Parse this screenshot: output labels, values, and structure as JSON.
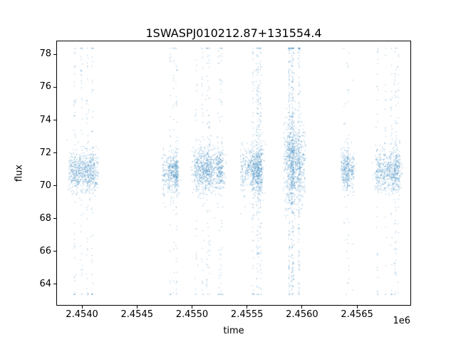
{
  "chart_data": {
    "type": "scatter",
    "title": "1SWASPJ010212.87+131554.4",
    "xlabel": "time",
    "ylabel": "flux",
    "x_offset_label": "1e6",
    "xlim": [
      2453773,
      2456985
    ],
    "ylim": [
      62.73,
      78.8
    ],
    "xticks": [
      2454000,
      2454500,
      2455000,
      2455500,
      2456000,
      2456500
    ],
    "xtick_labels": [
      "2.4540",
      "2.4545",
      "2.4550",
      "2.4555",
      "2.4560",
      "2.4565"
    ],
    "yticks": [
      64,
      66,
      68,
      70,
      72,
      74,
      76,
      78
    ],
    "grid": false,
    "legend": "none",
    "marker_color": "#1f77b4",
    "marker_alpha": 0.55,
    "marker_size_px": 1,
    "flux_min": 63.4,
    "flux_max": 78.4,
    "clusters": [
      {
        "x_center": 2454010,
        "x_width": 270,
        "n_points": 900,
        "core_mean": 70.9,
        "core_sigma": 0.6,
        "outlier_fraction": 0.18
      },
      {
        "x_center": 2454797,
        "x_width": 140,
        "n_points": 550,
        "core_mean": 70.8,
        "core_sigma": 0.65,
        "outlier_fraction": 0.15
      },
      {
        "x_center": 2455146,
        "x_width": 260,
        "n_points": 1100,
        "core_mean": 71.0,
        "core_sigma": 0.7,
        "outlier_fraction": 0.18
      },
      {
        "x_center": 2455535,
        "x_width": 200,
        "n_points": 1000,
        "core_mean": 71.0,
        "core_sigma": 0.75,
        "outlier_fraction": 0.2
      },
      {
        "x_center": 2455930,
        "x_width": 200,
        "n_points": 1400,
        "core_mean": 71.3,
        "core_sigma": 1.3,
        "outlier_fraction": 0.3
      },
      {
        "x_center": 2456409,
        "x_width": 120,
        "n_points": 420,
        "core_mean": 71.0,
        "core_sigma": 0.6,
        "outlier_fraction": 0.12
      },
      {
        "x_center": 2456779,
        "x_width": 210,
        "n_points": 800,
        "core_mean": 70.9,
        "core_sigma": 0.7,
        "outlier_fraction": 0.2
      }
    ]
  }
}
